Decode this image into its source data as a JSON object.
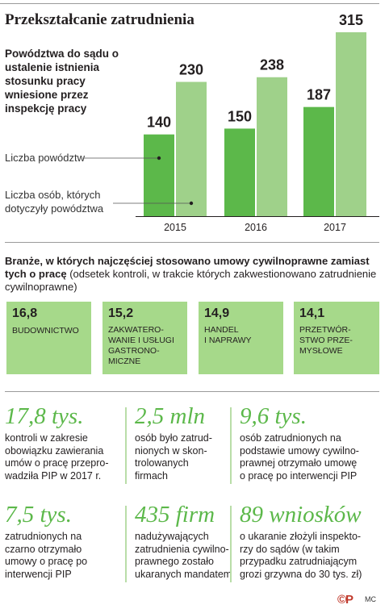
{
  "title": "Przekształcanie zatrudnienia",
  "subtitle": "Powództwa do sądu o ustalenie istnienia stosunku pracy wniesione przez inspekcję pracy",
  "chart_data": {
    "type": "bar",
    "title": "Przekształcanie zatrudnienia",
    "subtitle": "Powództwa do sądu o ustalenie istnienia stosunku pracy wniesione przez inspekcję pracy",
    "categories": [
      "2015",
      "2016",
      "2017"
    ],
    "series": [
      {
        "name": "Liczba powództw",
        "values": [
          140,
          150,
          187
        ],
        "color": "#5cb84a"
      },
      {
        "name": "Liczba osób, których dotyczyły powództwa",
        "values": [
          230,
          238,
          315
        ],
        "color": "#9fd18a"
      }
    ],
    "ylim": [
      0,
      315
    ],
    "legend_placement": "left",
    "grid": false
  },
  "sectors": {
    "heading_bold": "Branże, w których najczęściej stosowano umowy cywilnoprawne zamiast tych o pracę",
    "heading_rest": " (odsetek kontroli, w trakcie których zakwestionowano zatrudnienie cywilnoprawne)",
    "items": [
      {
        "value": "16,8",
        "label": "BUDOWNICTWO"
      },
      {
        "value": "15,2",
        "label": "ZAKWATERO-\nWANIE I USŁUGI\nGASTRONO-\nMICZNE"
      },
      {
        "value": "14,9",
        "label": "HANDEL\nI NAPRAWY"
      },
      {
        "value": "14,1",
        "label": "PRZETWÓR-\nSTWO PRZE-\nMYSŁOWE"
      }
    ]
  },
  "stats": [
    {
      "big": "17,8 tys.",
      "text": "kontroli w zakresie\nobowiązku zawierania\numów o pracę przepro-\nwadziła PIP w 2017 r."
    },
    {
      "big": "2,5 mln",
      "text": "osób było zatrud-\nnionych w skon-\ntrolowanych\nfirmach"
    },
    {
      "big": "9,6 tys.",
      "text": "osób zatrudnionych na\npodstawie umowy cywilno-\nprawnej otrzymało umowę\no pracę po interwencji PIP"
    },
    {
      "big": "7,5 tys.",
      "text": "zatrudnionych na\nczarno otrzymało\numowy o pracę po\ninterwencji PIP"
    },
    {
      "big": "435 firm",
      "text": "nadużywających\nzatrudnienia cywilno-\nprawnego zostało\nukaranych mandatem"
    },
    {
      "big": "89 wniosków",
      "text": "o ukaranie złożyli inspekto-\nrzy do sądów (w takim\nprzypadku zatrudniającym\ngrozi grzywna do 30 tys. zł)"
    }
  ],
  "footer": {
    "logo": "©P",
    "credit": "MC"
  }
}
